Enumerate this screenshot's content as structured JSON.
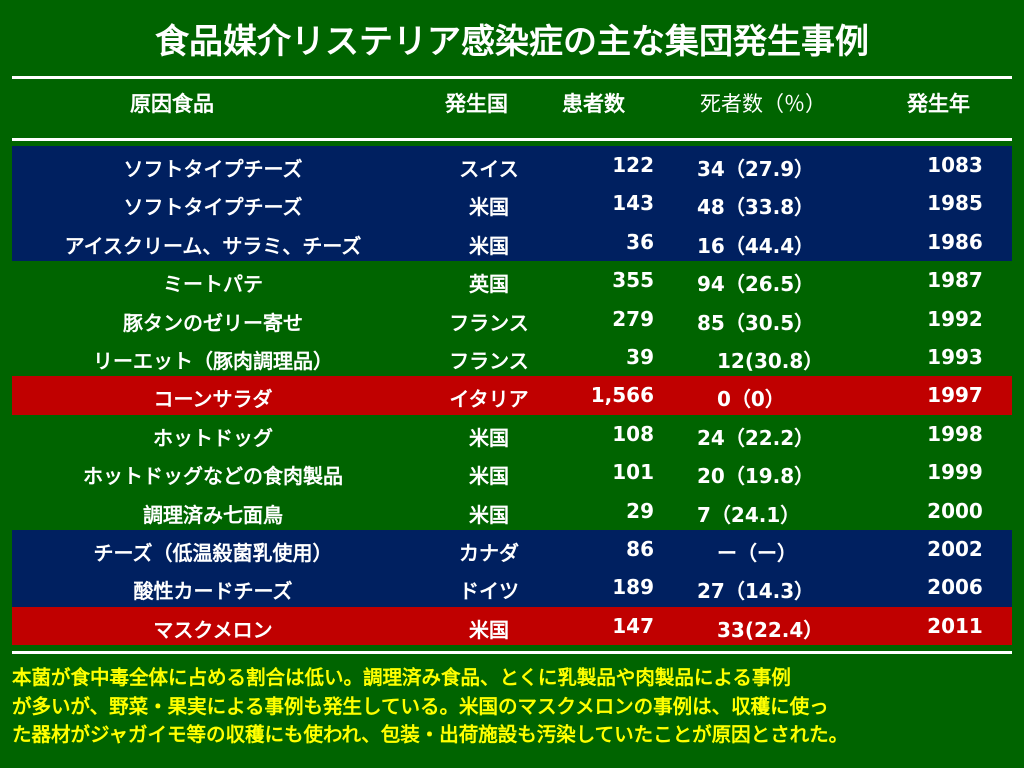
{
  "title": "食品媒介リステリア感染症の主な集団発生事例",
  "headers": {
    "food": "原因食品",
    "country": "発生国",
    "patients": "患者数",
    "deaths": "死者数（％）",
    "year": "発生年"
  },
  "rows": [
    {
      "food": "ソフトタイプチーズ",
      "country": "スイス",
      "patients": "122",
      "deaths": "34（27.9）",
      "year": "1083",
      "highlight": "blue"
    },
    {
      "food": "ソフトタイプチーズ",
      "country": "米国",
      "patients": "143",
      "deaths": "48（33.8）",
      "year": "1985",
      "highlight": "blue"
    },
    {
      "food": "アイスクリーム、サラミ、チーズ",
      "country": "米国",
      "patients": "36",
      "deaths": "16（44.4）",
      "year": "1986",
      "highlight": "blue"
    },
    {
      "food": "ミートパテ",
      "country": "英国",
      "patients": "355",
      "deaths": "94（26.5）",
      "year": "1987",
      "highlight": "none"
    },
    {
      "food": "豚タンのゼリー寄せ",
      "country": "フランス",
      "patients": "279",
      "deaths": "85（30.5）",
      "year": "1992",
      "highlight": "none"
    },
    {
      "food": "リーエット（豚肉調理品）",
      "country": "フランス",
      "patients": "39",
      "deaths": "　12(30.8）",
      "year": "1993",
      "highlight": "none"
    },
    {
      "food": "コーンサラダ",
      "country": "イタリア",
      "patients": "1,566",
      "deaths": "　0（0）",
      "year": "1997",
      "highlight": "red"
    },
    {
      "food": "ホットドッグ",
      "country": "米国",
      "patients": "108",
      "deaths": "24（22.2）",
      "year": "1998",
      "highlight": "none"
    },
    {
      "food": "ホットドッグなどの食肉製品",
      "country": "米国",
      "patients": "101",
      "deaths": "20（19.8）",
      "year": "1999",
      "highlight": "none"
    },
    {
      "food": "調理済み七面鳥",
      "country": "米国",
      "patients": "29",
      "deaths": "7（24.1）",
      "year": "2000",
      "highlight": "none"
    },
    {
      "food": "チーズ（低温殺菌乳使用）",
      "country": "カナダ",
      "patients": "86",
      "deaths": "　ー（ー）",
      "year": "2002",
      "highlight": "blue"
    },
    {
      "food": "酸性カードチーズ",
      "country": "ドイツ",
      "patients": "189",
      "deaths": "27（14.3）",
      "year": "2006",
      "highlight": "blue"
    },
    {
      "food": "マスクメロン",
      "country": "米国",
      "patients": "147",
      "deaths": "　33(22.4）",
      "year": "2011",
      "highlight": "red"
    }
  ],
  "footer": [
    "本菌が食中毒全体に占める割合は低い。調理済み食品、とくに乳製品や肉製品による事例",
    "が多いが、野菜・果実による事例も発生している。米国のマスクメロンの事例は、収穫に使っ",
    "た器材がジャガイモ等の収穫にも使われ、包装・出荷施設も汚染していたことが原因とされた。"
  ],
  "colors": {
    "background": "#006400",
    "blue_row": "#002060",
    "red_row": "#c00000",
    "footer_text": "#ffff00"
  }
}
